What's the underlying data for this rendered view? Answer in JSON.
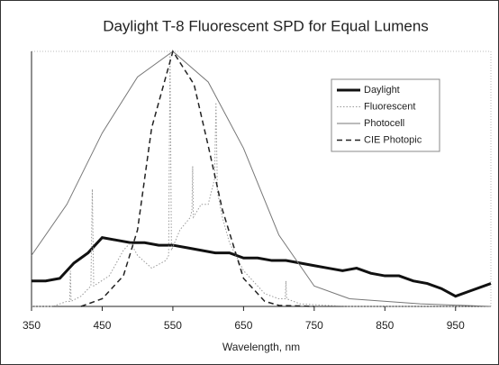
{
  "chart_data": {
    "type": "line",
    "title": "Daylight T-8 Fluorescent SPD for Equal Lumens",
    "x_label": "Wavelength, nm",
    "xlim": [
      350,
      1000
    ],
    "xticks": [
      350,
      450,
      550,
      650,
      750,
      850,
      950
    ],
    "ylim": [
      0,
      100
    ],
    "series": [
      {
        "name": "Daylight",
        "color": "#111111",
        "line_style": "solid",
        "line_width": 3,
        "x": [
          350,
          370,
          390,
          400,
          410,
          420,
          430,
          440,
          450,
          470,
          490,
          510,
          530,
          550,
          570,
          590,
          610,
          630,
          650,
          670,
          690,
          710,
          730,
          750,
          770,
          790,
          810,
          830,
          850,
          870,
          890,
          910,
          930,
          950,
          970,
          1000
        ],
        "values": [
          10,
          10,
          11,
          14,
          17,
          19,
          21,
          24,
          27,
          26,
          25,
          25,
          24,
          24,
          23,
          22,
          21,
          21,
          19,
          19,
          18,
          18,
          17,
          16,
          15,
          14,
          15,
          13,
          12,
          12,
          10,
          9,
          7,
          4,
          6,
          9
        ]
      },
      {
        "name": "Fluorescent",
        "color": "#999999",
        "line_style": "dotted",
        "line_width": 1,
        "x": [
          350,
          380,
          400,
          404,
          405,
          406,
          420,
          434,
          436,
          438,
          460,
          480,
          490,
          500,
          520,
          540,
          544,
          546,
          548,
          560,
          575,
          577,
          578,
          579,
          590,
          600,
          609,
          611,
          613,
          620,
          630,
          650,
          680,
          700,
          709,
          710,
          711,
          730,
          760,
          800,
          1000
        ],
        "values": [
          0,
          0,
          2,
          2,
          14,
          2,
          4,
          8,
          46,
          8,
          12,
          22,
          25,
          20,
          15,
          18,
          20,
          99,
          22,
          30,
          35,
          38,
          55,
          35,
          40,
          40,
          50,
          80,
          45,
          35,
          25,
          14,
          5,
          3,
          3,
          10,
          3,
          1,
          0.5,
          0,
          0
        ]
      },
      {
        "name": "Photocell",
        "color": "#777777",
        "line_style": "solid",
        "line_width": 1,
        "x": [
          350,
          400,
          450,
          500,
          550,
          600,
          650,
          700,
          750,
          800,
          900,
          1000
        ],
        "values": [
          20,
          40,
          68,
          90,
          100,
          88,
          62,
          28,
          8,
          3,
          1,
          0
        ]
      },
      {
        "name": "CIE Photopic",
        "color": "#222222",
        "line_style": "dashed",
        "line_width": 1.5,
        "x": [
          420,
          450,
          480,
          500,
          520,
          550,
          580,
          600,
          620,
          650,
          680,
          700,
          750
        ],
        "values": [
          0,
          3,
          12,
          30,
          70,
          100,
          87,
          63,
          38,
          11,
          2,
          0.4,
          0
        ]
      }
    ]
  }
}
